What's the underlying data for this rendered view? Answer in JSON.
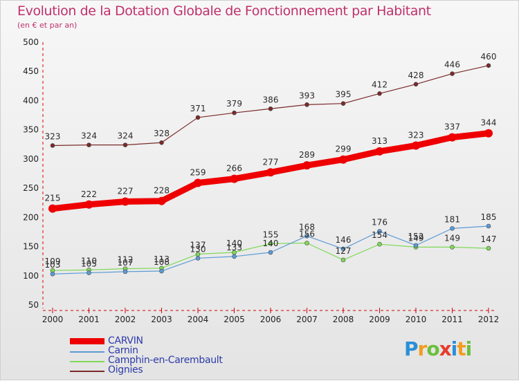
{
  "header": {
    "title": "Evolution de la Dotation Globale de Fonctionnement par Habitant",
    "subtitle": "(en € et par an)"
  },
  "logo": {
    "letters": [
      "P",
      "r",
      "o",
      "x",
      "i",
      "t",
      "i"
    ],
    "colors": [
      "#2b8fd8",
      "#f39c1f",
      "#6cbf3c",
      "#e63b2e",
      "#2b8fd8",
      "#f39c1f",
      "#6cbf3c"
    ]
  },
  "chart_data": {
    "type": "line",
    "title": "Evolution de la Dotation Globale de Fonctionnement par Habitant",
    "subtitle": "(en € et par an)",
    "x": [
      "2000",
      "2001",
      "2002",
      "2003",
      "2004",
      "2005",
      "2006",
      "2007",
      "2008",
      "2009",
      "2010",
      "2011",
      "2012"
    ],
    "ylim": [
      50,
      500
    ],
    "yticks": [
      50,
      100,
      150,
      200,
      250,
      300,
      350,
      400,
      450,
      500
    ],
    "grid": false,
    "legend_position": "bottom-left",
    "series": [
      {
        "name": "CARVIN",
        "color": "#ee0000",
        "emphasis": true,
        "values": [
          215,
          222,
          227,
          228,
          259,
          266,
          277,
          289,
          299,
          313,
          323,
          337,
          344
        ],
        "labels": [
          "215",
          "222",
          "227",
          "228",
          "259",
          "266",
          "277",
          "289",
          "299",
          "313",
          "323",
          "337",
          "344"
        ]
      },
      {
        "name": "Carnin",
        "color": "#5b9bd5",
        "emphasis": false,
        "values": [
          103,
          105,
          107,
          108,
          130,
          133,
          140,
          168,
          146,
          176,
          152,
          181,
          185
        ],
        "labels": [
          "103",
          "105",
          "107",
          "108",
          "130",
          "133",
          "140",
          "168",
          "146",
          "176",
          "152",
          "181",
          "185"
        ]
      },
      {
        "name": "Camphin-en-Carembault",
        "color": "#7ed957",
        "emphasis": false,
        "values": [
          109,
          110,
          112,
          113,
          137,
          140,
          155,
          156,
          127,
          154,
          149,
          149,
          147
        ],
        "labels": [
          "109",
          "110",
          "112",
          "113",
          "137",
          "140",
          "155",
          "156",
          "127",
          "154",
          "149",
          "149",
          "147"
        ]
      },
      {
        "name": "Oignies",
        "color": "#7a2a2a",
        "emphasis": false,
        "values": [
          323,
          324,
          324,
          328,
          371,
          379,
          386,
          393,
          395,
          412,
          428,
          446,
          460
        ],
        "labels": [
          "323",
          "324",
          "324",
          "328",
          "371",
          "379",
          "386",
          "393",
          "395",
          "412",
          "428",
          "446",
          "460"
        ]
      }
    ]
  }
}
